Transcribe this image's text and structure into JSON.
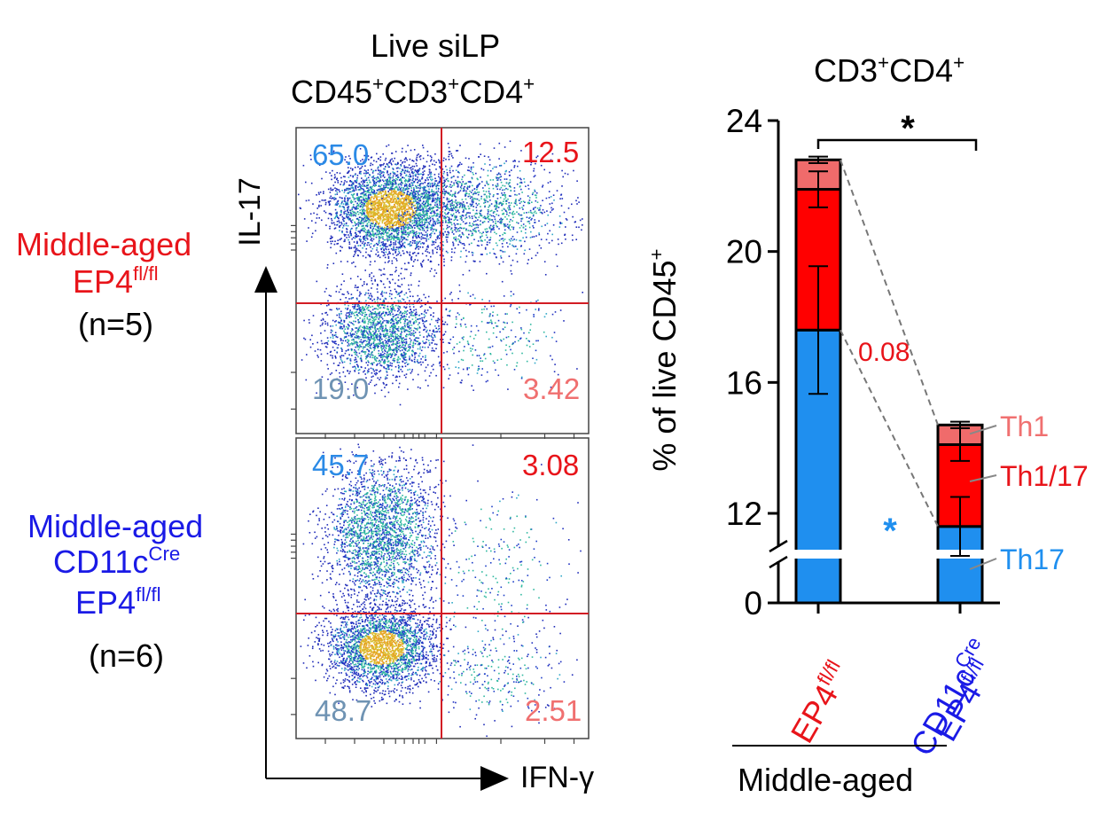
{
  "flow": {
    "title_line1": "Live siLP",
    "title_line2_parts": [
      "CD45",
      "+",
      "CD3",
      "+",
      "CD4",
      "+"
    ],
    "y_axis_label": "IL-17",
    "x_axis_label": "IFN-γ",
    "groups": [
      {
        "name_line1": "Middle-aged",
        "name_base": "EP4",
        "name_sup": "fl/fl",
        "n": "(n=5)",
        "q_ul": "65.0",
        "q_ur": "12.5",
        "q_ll": "19.0",
        "q_lr": "3.42"
      },
      {
        "name_line1": "Middle-aged",
        "name_cre_base": "CD11c",
        "name_cre_sup": "Cre",
        "name_base": "EP4",
        "name_sup": "fl/fl",
        "n": "(n=6)",
        "q_ul": "45.7",
        "q_ur": "3.08",
        "q_ll": "48.7",
        "q_lr": "2.51"
      }
    ]
  },
  "chart_data": {
    "type": "bar",
    "stacked": true,
    "title_parts": [
      "CD3",
      "+",
      "CD4",
      "+"
    ],
    "ylabel_base": "% of live CD45",
    "ylabel_sup": "+",
    "xlabel": "Middle-aged",
    "categories": [
      "EP4fl/fl",
      "CD11cCre EP4fl/fl"
    ],
    "category_labels": [
      {
        "base": "EP4",
        "sup": "fl/fl"
      },
      {
        "line1_base": "CD11c",
        "line1_sup": "Cre",
        "line2_base": "EP4",
        "line2_sup": "fl/fl"
      }
    ],
    "yticks": [
      "0",
      "12",
      "16",
      "20",
      "24"
    ],
    "axis_break": true,
    "ylim_upper": [
      11.5,
      24
    ],
    "series": [
      {
        "name": "Th17",
        "values": [
          17.6,
          11.6
        ],
        "errors": [
          1.95,
          0.9
        ],
        "color": "#1f8fef"
      },
      {
        "name": "Th1/17",
        "values": [
          4.3,
          2.5
        ],
        "errors": [
          0.55,
          0.5
        ],
        "color": "#ff0000"
      },
      {
        "name": "Th1",
        "values": [
          0.9,
          0.6
        ],
        "errors": [
          0.1,
          0.1
        ],
        "color": "#f06b6b"
      }
    ],
    "totals": [
      22.8,
      14.7
    ],
    "annotations": {
      "top_significance": "*",
      "th17_significance": "*",
      "th1_17_pvalue": "0.08"
    }
  }
}
